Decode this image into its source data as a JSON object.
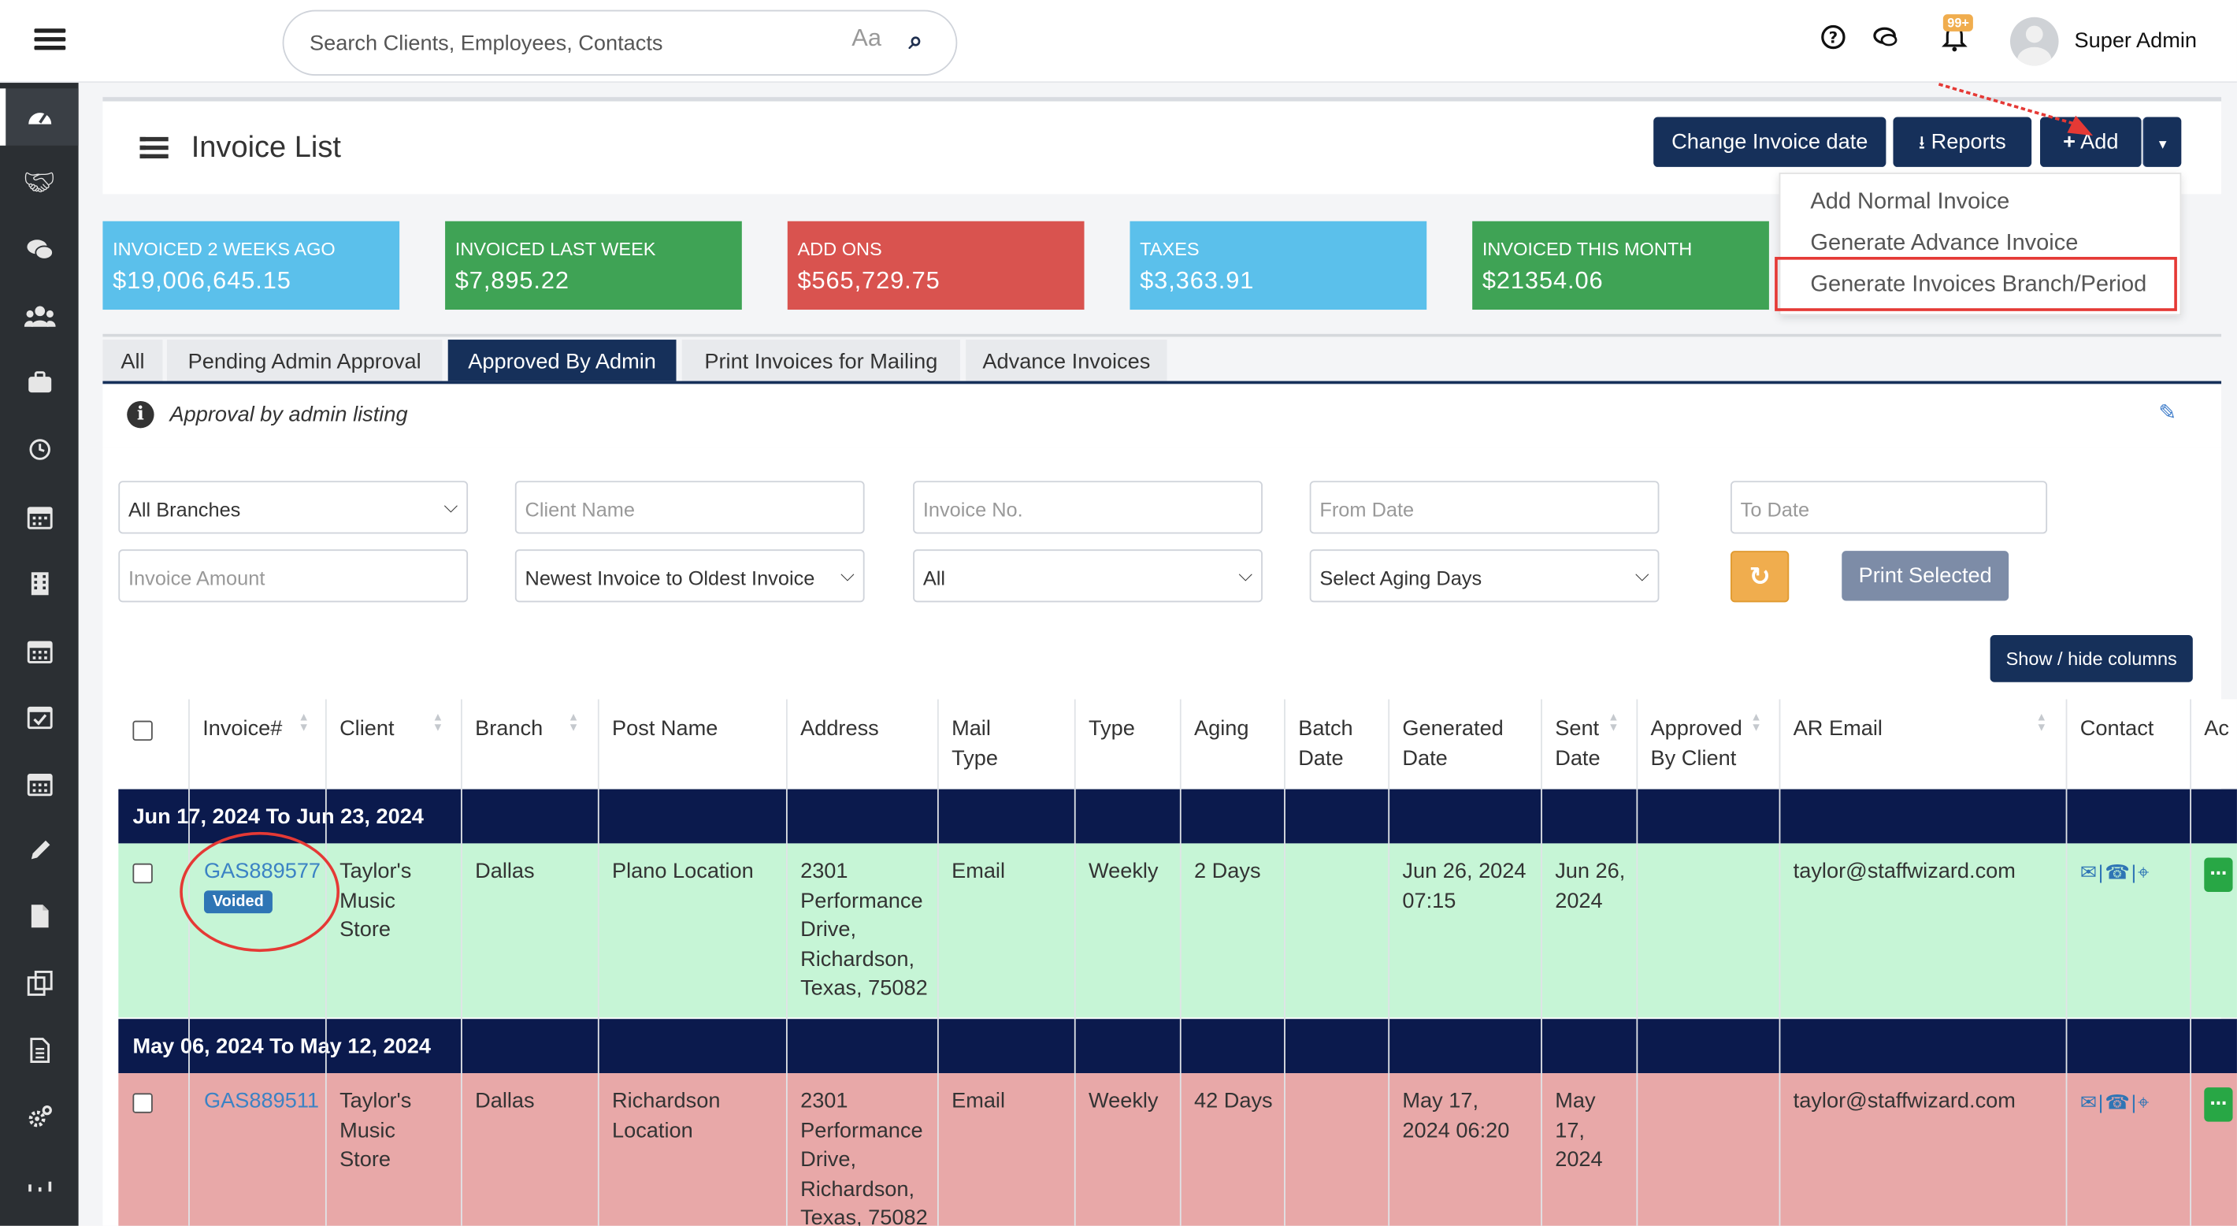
{
  "topbar": {
    "search_placeholder": "Search Clients, Employees, Contacts",
    "case_toggle": "Aa",
    "notification_count": "99+",
    "user_name": "Super Admin"
  },
  "sidebar": {
    "items": [
      "dashboard",
      "handshake",
      "chat",
      "users",
      "briefcase",
      "clock",
      "calendar",
      "building",
      "calendar-alt",
      "calendar-check",
      "calendar-grid",
      "pencil",
      "file",
      "copy",
      "document",
      "cogs",
      "more"
    ]
  },
  "header": {
    "title": "Invoice List",
    "change_date_label": "Change Invoice date",
    "reports_label": "Reports",
    "add_label": "Add"
  },
  "add_menu": {
    "items": [
      "Add Normal Invoice",
      "Generate Advance Invoice",
      "Generate Invoices Branch/Period"
    ]
  },
  "stats": [
    {
      "label": "INVOICED 2 WEEKS AGO",
      "value": "$19,006,645.15",
      "color": "#5bc0eb"
    },
    {
      "label": "INVOICED LAST WEEK",
      "value": "$7,895.22",
      "color": "#3fa355"
    },
    {
      "label": "ADD ONS",
      "value": "$565,729.75",
      "color": "#d9534f"
    },
    {
      "label": "TAXES",
      "value": "$3,363.91",
      "color": "#5bc0eb"
    },
    {
      "label": "INVOICED THIS MONTH",
      "value": "$21354.06",
      "color": "#3fa355"
    }
  ],
  "tabs": [
    "All",
    "Pending Admin Approval",
    "Approved By Admin",
    "Print Invoices for Mailing",
    "Advance Invoices"
  ],
  "info": {
    "text": "Approval by admin listing"
  },
  "filters": {
    "branch": "All Branches",
    "client_name_ph": "Client Name",
    "invoice_no_ph": "Invoice No.",
    "from_date_ph": "From Date",
    "to_date_ph": "To Date",
    "invoice_amount_ph": "Invoice Amount",
    "sort_order": "Newest Invoice to Oldest Invoice",
    "status": "All",
    "aging": "Select Aging Days",
    "print_selected": "Print Selected",
    "show_hide": "Show / hide columns"
  },
  "table": {
    "columns": {
      "invoice": "Invoice#",
      "client": "Client",
      "branch": "Branch",
      "post_name": "Post Name",
      "address": "Address",
      "mail_type": "Mail Type",
      "type": "Type",
      "aging": "Aging",
      "batch_date": "Batch Date",
      "generated_date": "Generated Date",
      "sent_date": "Sent Date",
      "approved_by_client": "Approved By Client",
      "ar_email": "AR Email",
      "contact": "Contact",
      "actions": "Ac"
    },
    "groups": [
      {
        "label": "Jun 17, 2024 To Jun 23, 2024",
        "row": {
          "invoice": "GAS889577",
          "status": "Voided",
          "client": "Taylor's Music Store",
          "branch": "Dallas",
          "post_name": "Plano Location",
          "address": "2301 Performance Drive, Richardson, Texas, 75082",
          "mail_type": "Email",
          "type": "Weekly",
          "aging": "2 Days",
          "batch_date": "",
          "generated_date": "Jun 26, 2024 07:15",
          "sent_date": "Jun 26, 2024",
          "approved_by_client": "",
          "ar_email": "taylor@staffwizard.com",
          "row_color": "#c6f5d6"
        }
      },
      {
        "label": "May 06, 2024 To May 12, 2024",
        "row": {
          "invoice": "GAS889511",
          "client": "Taylor's Music Store",
          "branch": "Dallas",
          "post_name": "Richardson Location",
          "address": "2301 Performance Drive, Richardson, Texas, 75082",
          "mail_type": "Email",
          "type": "Weekly",
          "aging": "42 Days",
          "batch_date": "",
          "generated_date": "May 17, 2024 06:20",
          "sent_date": "May 17, 2024",
          "approved_by_client": "",
          "ar_email": "taylor@staffwizard.com",
          "row_color": "#e8a8a8"
        }
      }
    ]
  }
}
